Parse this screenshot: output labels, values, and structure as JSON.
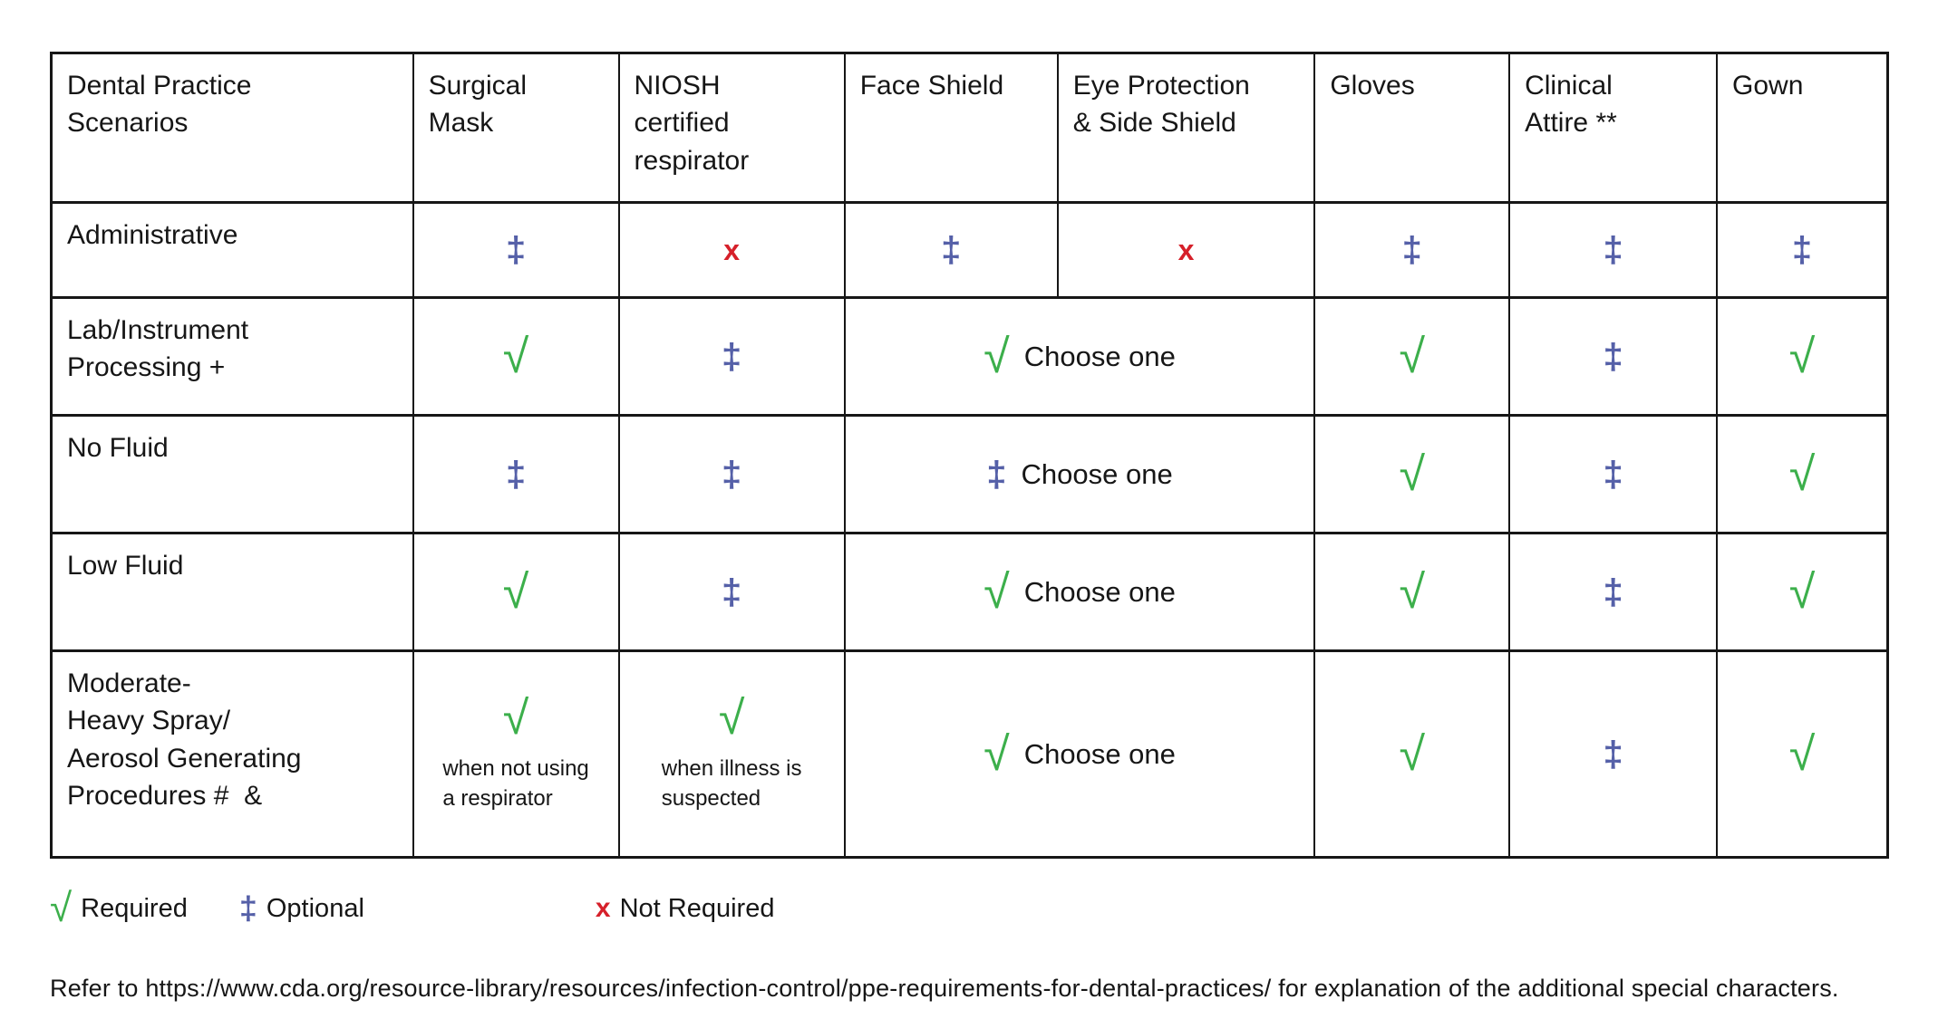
{
  "symbols": {
    "required": "√",
    "optional": "‡",
    "not_required": "x"
  },
  "colors": {
    "required": "#3caf4b",
    "optional": "#5560a8",
    "not_required": "#d6202a"
  },
  "table": {
    "columns": [
      "Dental Practice\nScenarios",
      "Surgical\nMask",
      "NIOSH\ncertified\nrespirator",
      "Face Shield",
      "Eye Protection\n& Side Shield",
      "Gloves",
      "Clinical\nAttire **",
      "Gown"
    ],
    "rows": [
      {
        "label": "Administrative",
        "cells": [
          {
            "kind": "optional"
          },
          {
            "kind": "not_required"
          },
          {
            "kind": "optional"
          },
          {
            "kind": "not_required"
          },
          {
            "kind": "optional"
          },
          {
            "kind": "optional"
          },
          {
            "kind": "optional"
          }
        ]
      },
      {
        "label": "Lab/Instrument\nProcessing +",
        "cells": [
          {
            "kind": "required"
          },
          {
            "kind": "optional"
          },
          {
            "kind": "required",
            "span": 2,
            "text": "Choose one"
          },
          {
            "kind": "required"
          },
          {
            "kind": "optional"
          },
          {
            "kind": "required"
          }
        ]
      },
      {
        "label": "No Fluid",
        "cells": [
          {
            "kind": "optional"
          },
          {
            "kind": "optional"
          },
          {
            "kind": "optional",
            "span": 2,
            "text": "Choose one"
          },
          {
            "kind": "required"
          },
          {
            "kind": "optional"
          },
          {
            "kind": "required"
          }
        ]
      },
      {
        "label": "Low Fluid",
        "cells": [
          {
            "kind": "required"
          },
          {
            "kind": "optional"
          },
          {
            "kind": "required",
            "span": 2,
            "text": "Choose one"
          },
          {
            "kind": "required"
          },
          {
            "kind": "optional"
          },
          {
            "kind": "required"
          }
        ]
      },
      {
        "label": "Moderate-\nHeavy Spray/\nAerosol Generating\nProcedures #  &",
        "cells": [
          {
            "kind": "required",
            "caption": "when not using\na respirator"
          },
          {
            "kind": "required",
            "caption": "when illness is\nsuspected"
          },
          {
            "kind": "required",
            "span": 2,
            "text": "Choose one"
          },
          {
            "kind": "required"
          },
          {
            "kind": "optional"
          },
          {
            "kind": "required"
          }
        ]
      }
    ]
  },
  "legend": {
    "items": [
      {
        "kind": "required",
        "label": "Required"
      },
      {
        "kind": "optional",
        "label": "Optional"
      },
      {
        "kind": "not_required",
        "label": "Not Required"
      }
    ]
  },
  "footer": "Refer to https://www.cda.org/resource-library/resources/infection-control/ppe-requirements-for-dental-practices/ for explanation of the additional special characters."
}
